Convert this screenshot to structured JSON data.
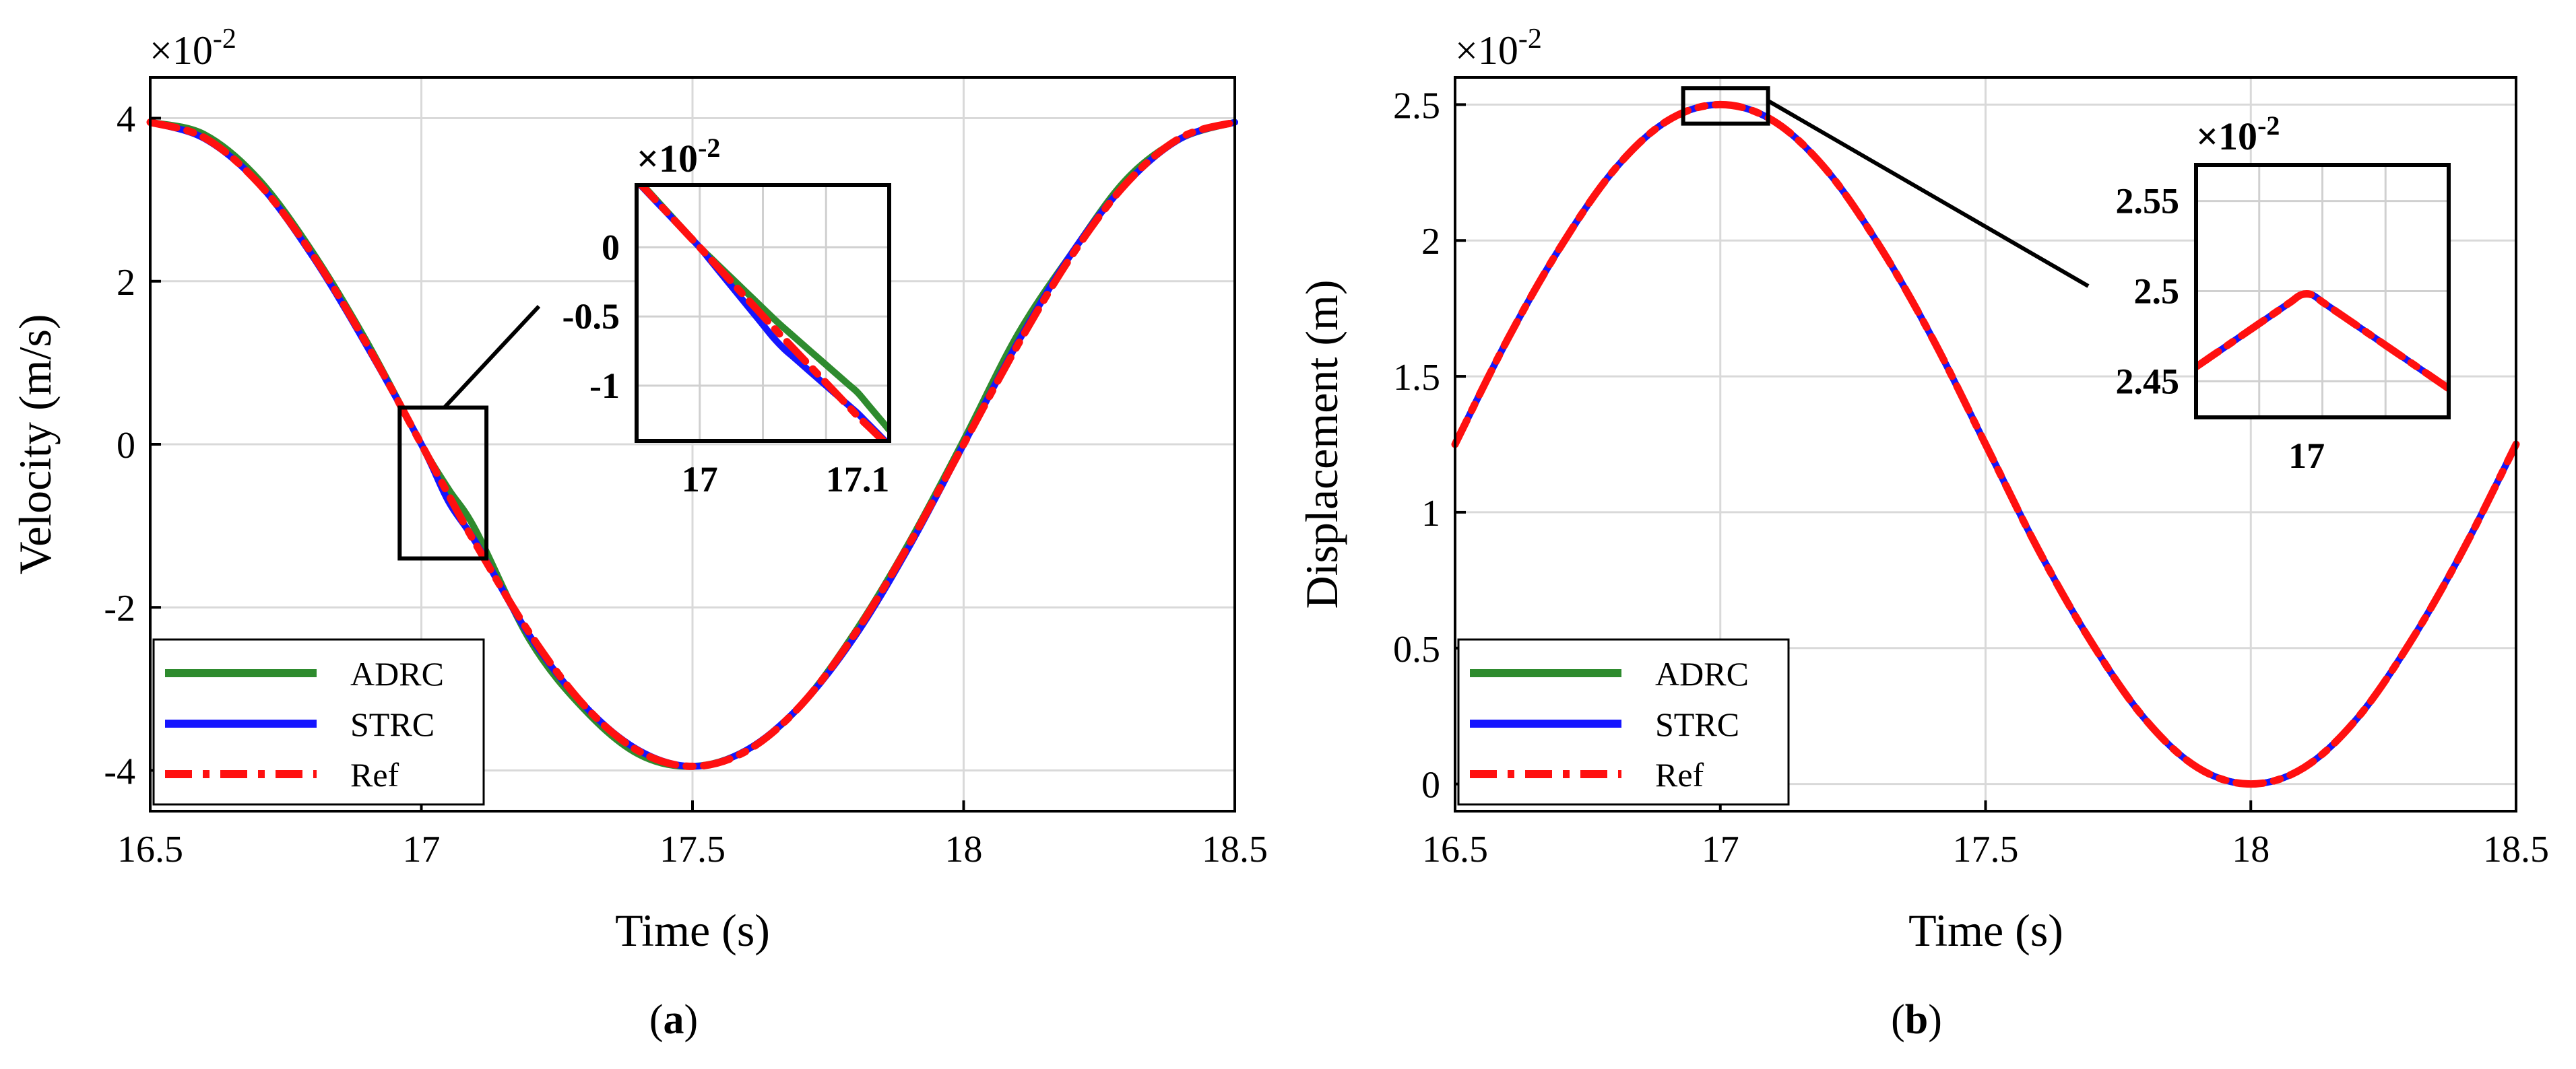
{
  "panels": [
    {
      "id": "a",
      "caption_open": "(",
      "caption_letter": "a",
      "caption_close": ")",
      "axis_multiplier": "×10",
      "axis_exponent": "-2",
      "inset_multiplier": "×10",
      "inset_exponent": "-2",
      "legend": [
        {
          "label": "ADRC",
          "color": "#2e8b2e",
          "dash": "solid"
        },
        {
          "label": "STRC",
          "color": "#1515ff",
          "dash": "solid"
        },
        {
          "label": "Ref",
          "color": "#ff1010",
          "dash": "dashdot"
        }
      ],
      "inset_xtick_labels": [
        "17",
        "17.1"
      ],
      "inset_ytick_labels": [
        "0",
        "-0.5",
        "-1"
      ]
    },
    {
      "id": "b",
      "caption_open": "(",
      "caption_letter": "b",
      "caption_close": ")",
      "axis_multiplier": "×10",
      "axis_exponent": "-2",
      "inset_multiplier": "×10",
      "inset_exponent": "-2",
      "legend": [
        {
          "label": "ADRC",
          "color": "#2e8b2e",
          "dash": "solid"
        },
        {
          "label": "STRC",
          "color": "#1515ff",
          "dash": "solid"
        },
        {
          "label": "Ref",
          "color": "#ff1010",
          "dash": "dashdot"
        }
      ],
      "inset_xtick_labels": [
        "17"
      ],
      "inset_ytick_labels": [
        "2.55",
        "2.5",
        "2.45"
      ]
    }
  ],
  "chart_data": [
    {
      "type": "line",
      "title": "",
      "xlabel": "Time (s)",
      "ylabel": "Velocity (m/s)",
      "y_scale_note": "×10^-2",
      "xlim": [
        16.5,
        18.5
      ],
      "ylim": [
        -4.5,
        4.5
      ],
      "xticks": [
        16.5,
        17,
        17.5,
        18,
        18.5
      ],
      "xtick_labels": [
        "16.5",
        "17",
        "17.5",
        "18",
        "18.5"
      ],
      "yticks": [
        -4,
        -2,
        0,
        2,
        4
      ],
      "ytick_labels": [
        "-4",
        "-2",
        "0",
        "2",
        "4"
      ],
      "grid": true,
      "legend_position": "bottom-left",
      "x": [
        16.5,
        16.6,
        16.7,
        16.8,
        16.9,
        17.0,
        17.05,
        17.1,
        17.2,
        17.3,
        17.4,
        17.5,
        17.6,
        17.7,
        17.8,
        17.9,
        18.0,
        18.1,
        18.2,
        18.3,
        18.4,
        18.5
      ],
      "series": [
        {
          "name": "ADRC",
          "color": "#2e8b2e",
          "values": [
            3.95,
            3.8,
            3.25,
            2.35,
            1.25,
            0.0,
            -0.55,
            -1.05,
            -2.4,
            -3.25,
            -3.8,
            -3.95,
            -3.75,
            -3.2,
            -2.3,
            -1.2,
            0.05,
            1.35,
            2.35,
            3.25,
            3.75,
            3.95
          ]
        },
        {
          "name": "STRC",
          "color": "#1515ff",
          "values": [
            3.95,
            3.75,
            3.2,
            2.3,
            1.2,
            0.0,
            -0.7,
            -1.2,
            -2.35,
            -3.2,
            -3.75,
            -3.95,
            -3.75,
            -3.2,
            -2.35,
            -1.25,
            0.0,
            1.25,
            2.35,
            3.2,
            3.75,
            3.95
          ]
        },
        {
          "name": "Ref",
          "color": "#ff1010",
          "values": [
            3.95,
            3.76,
            3.2,
            2.32,
            1.22,
            0.0,
            -0.62,
            -1.22,
            -2.32,
            -3.2,
            -3.76,
            -3.95,
            -3.76,
            -3.2,
            -2.32,
            -1.22,
            0.0,
            1.22,
            2.32,
            3.2,
            3.76,
            3.95
          ]
        }
      ],
      "inset": {
        "xlim": [
          16.96,
          17.12
        ],
        "ylim": [
          -1.4,
          0.45
        ],
        "xticks": [
          17,
          17.1
        ],
        "yticks": [
          0,
          -0.5,
          -1
        ],
        "zoom_box": {
          "x": [
            16.96,
            17.12
          ],
          "y": [
            -1.4,
            0.45
          ]
        }
      }
    },
    {
      "type": "line",
      "title": "",
      "xlabel": "Time (s)",
      "ylabel": "Displacement (m)",
      "y_scale_note": "×10^-2",
      "xlim": [
        16.5,
        18.5
      ],
      "ylim": [
        -0.1,
        2.6
      ],
      "xticks": [
        16.5,
        17,
        17.5,
        18,
        18.5
      ],
      "xtick_labels": [
        "16.5",
        "17",
        "17.5",
        "18",
        "18.5"
      ],
      "yticks": [
        0,
        0.5,
        1,
        1.5,
        2,
        2.5
      ],
      "ytick_labels": [
        "0",
        "0.5",
        "1",
        "1.5",
        "2",
        "2.5"
      ],
      "grid": true,
      "legend_position": "bottom-left",
      "x": [
        16.5,
        16.6,
        16.7,
        16.8,
        16.9,
        17.0,
        17.1,
        17.2,
        17.3,
        17.4,
        17.5,
        17.6,
        17.7,
        17.8,
        17.9,
        18.0,
        18.1,
        18.2,
        18.3,
        18.4,
        18.5
      ],
      "series": [
        {
          "name": "ADRC",
          "color": "#2e8b2e",
          "values": [
            1.25,
            1.64,
            1.98,
            2.26,
            2.44,
            2.5,
            2.44,
            2.26,
            1.98,
            1.64,
            1.25,
            0.86,
            0.52,
            0.24,
            0.06,
            0.0,
            0.06,
            0.24,
            0.52,
            0.86,
            1.25
          ]
        },
        {
          "name": "STRC",
          "color": "#1515ff",
          "values": [
            1.25,
            1.64,
            1.98,
            2.26,
            2.44,
            2.5,
            2.44,
            2.26,
            1.98,
            1.64,
            1.25,
            0.86,
            0.52,
            0.24,
            0.06,
            0.0,
            0.06,
            0.24,
            0.52,
            0.86,
            1.25
          ]
        },
        {
          "name": "Ref",
          "color": "#ff1010",
          "values": [
            1.25,
            1.64,
            1.98,
            2.26,
            2.44,
            2.5,
            2.44,
            2.26,
            1.98,
            1.64,
            1.25,
            0.86,
            0.52,
            0.24,
            0.06,
            0.0,
            0.06,
            0.24,
            0.52,
            0.86,
            1.25
          ]
        }
      ],
      "inset": {
        "xlim": [
          16.93,
          17.09
        ],
        "ylim": [
          2.43,
          2.57
        ],
        "xticks": [
          17
        ],
        "yticks": [
          2.55,
          2.5,
          2.45
        ],
        "zoom_box": {
          "x": [
            16.93,
            17.09
          ],
          "y": [
            2.43,
            2.56
          ]
        }
      }
    }
  ]
}
